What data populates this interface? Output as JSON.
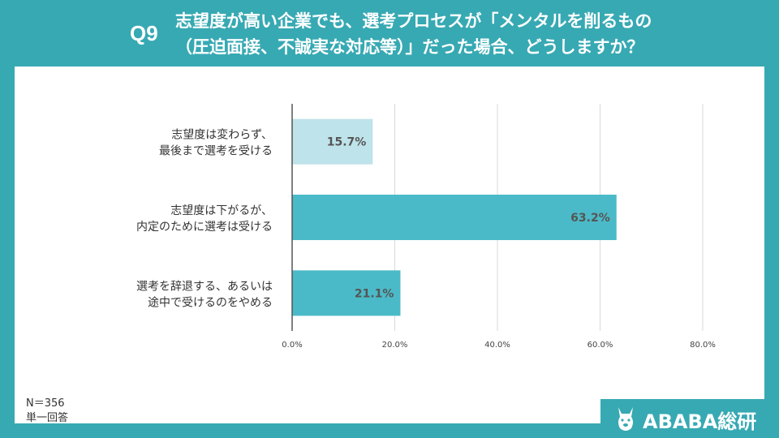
{
  "question": {
    "number": "Q9",
    "line1": "志望度が高い企業でも、選考プロセスが「メンタルを削るもの",
    "line2": "（圧迫面接、不誠実な対応等）」だった場合、どうしますか？"
  },
  "footnote": {
    "n": "N＝356",
    "type": "単一回答"
  },
  "logo": {
    "text": "ABABA総研",
    "icon": "alpaca-icon"
  },
  "colors": {
    "background": "#37a9b3",
    "bar_light": "#bfe3ea",
    "bar_dark": "#4bbac8",
    "axis": "#555555"
  },
  "chart_data": {
    "type": "bar",
    "orientation": "horizontal",
    "categories": [
      [
        "志望度は変わらず、",
        "最後まで選考を受ける"
      ],
      [
        "志望度は下がるが、",
        "内定のために選考は受ける"
      ],
      [
        "選考を辞退する、あるいは",
        "途中で受けるのをやめる"
      ]
    ],
    "values": [
      15.7,
      63.2,
      21.1
    ],
    "value_labels": [
      "15.7%",
      "63.2%",
      "21.1%"
    ],
    "xlim": [
      0,
      80
    ],
    "xticks": [
      0,
      20,
      40,
      60,
      80
    ],
    "xtick_labels": [
      "0.0%",
      "20.0%",
      "40.0%",
      "60.0%",
      "80.0%"
    ],
    "grid": true
  }
}
